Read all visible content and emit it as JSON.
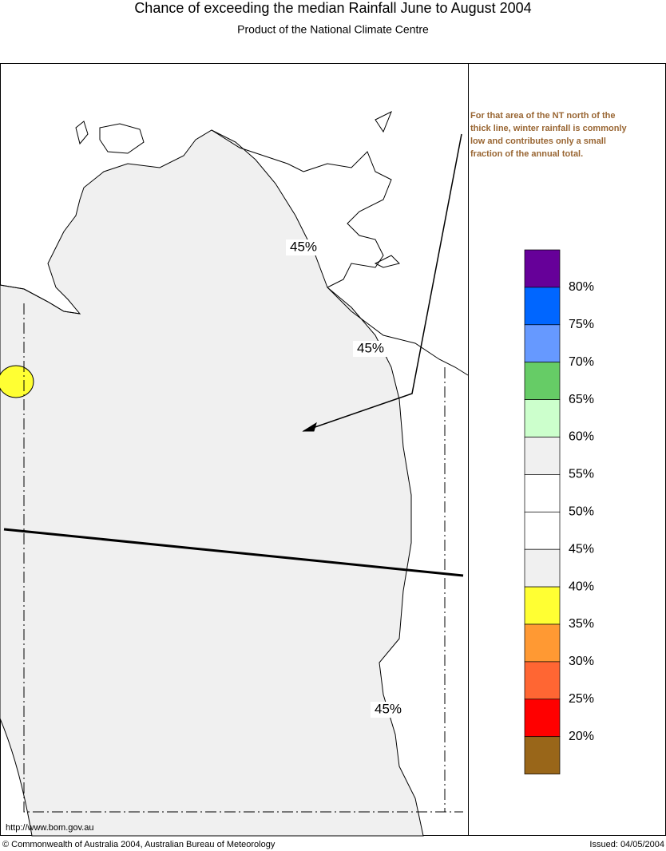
{
  "header": {
    "title": "Chance of exceeding the median Rainfall June to August 2004",
    "subtitle": "Product of the National Climate Centre"
  },
  "annotation": [
    "For that area of the NT north of the",
    "thick line, winter rainfall is commonly",
    "low and contributes only a small",
    "fraction of the annual total."
  ],
  "contour_labels": [
    "45%",
    "45%",
    "45%"
  ],
  "legend": {
    "colors": [
      "#660099",
      "#0066ff",
      "#6699ff",
      "#66cc66",
      "#ccffcc",
      "#f0f0f0",
      "#ffffff",
      "#ffffff",
      "#f0f0f0",
      "#ffff33",
      "#ff9933",
      "#ff6633",
      "#ff0000",
      "#996619"
    ],
    "labels": [
      "80%",
      "75%",
      "70%",
      "65%",
      "60%",
      "55%",
      "50%",
      "45%",
      "40%",
      "35%",
      "30%",
      "25%",
      "20%"
    ]
  },
  "footer": {
    "url": "http://www.bom.gov.au",
    "copyright": "© Commonwealth of Australia 2004, Australian Bureau of Meteorology",
    "issued": "Issued: 04/05/2004"
  }
}
